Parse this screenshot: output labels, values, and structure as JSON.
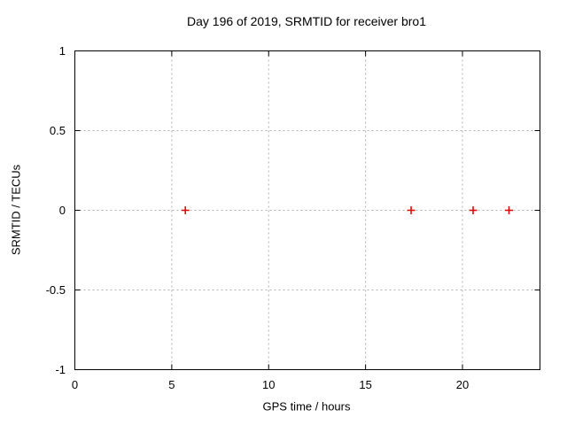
{
  "chart_data": {
    "type": "scatter",
    "title": "Day 196 of 2019, SRMTID for receiver bro1",
    "xlabel": "GPS time / hours",
    "ylabel": "SRMTID / TECUs",
    "xlim": [
      0,
      24
    ],
    "ylim": [
      -1,
      1
    ],
    "xticks": [
      0,
      5,
      10,
      15,
      20
    ],
    "yticks": [
      -1,
      -0.5,
      0,
      0.5,
      1
    ],
    "grid": true,
    "legend": "none",
    "marker": "plus",
    "colors": {
      "marker": "#dd0000",
      "grid": "#b0b0b0",
      "border": "#000000",
      "text": "#000000",
      "background": "#ffffff"
    },
    "series": [
      {
        "name": "SRMTID",
        "points": [
          {
            "x": 5.7,
            "y": 0
          },
          {
            "x": 17.35,
            "y": 0
          },
          {
            "x": 20.55,
            "y": 0
          },
          {
            "x": 22.4,
            "y": 0
          }
        ]
      }
    ]
  }
}
